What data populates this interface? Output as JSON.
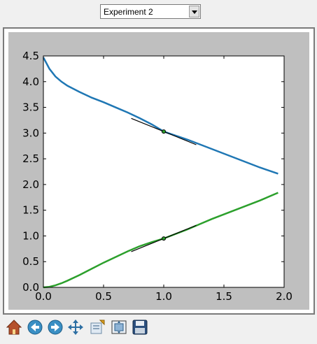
{
  "experiment_select": {
    "value": "Experiment 2"
  },
  "chart_data": {
    "type": "line",
    "xlim": [
      0.0,
      2.0
    ],
    "ylim": [
      0.0,
      4.5
    ],
    "x_ticks": [
      "0.0",
      "0.5",
      "1.0",
      "1.5",
      "2.0"
    ],
    "y_ticks": [
      "0.0",
      "0.5",
      "1.0",
      "1.5",
      "2.0",
      "2.5",
      "3.0",
      "3.5",
      "4.0",
      "4.5"
    ],
    "grid": false,
    "series": [
      {
        "color": "#1f77b4",
        "x": [
          0.0,
          0.05,
          0.1,
          0.15,
          0.2,
          0.3,
          0.4,
          0.5,
          0.6,
          0.7,
          0.8,
          0.9,
          1.0,
          1.1,
          1.2,
          1.3,
          1.4,
          1.5,
          1.6,
          1.7,
          1.8,
          1.95
        ],
        "y": [
          4.47,
          4.25,
          4.1,
          4.0,
          3.92,
          3.8,
          3.69,
          3.6,
          3.5,
          3.4,
          3.29,
          3.17,
          3.03,
          2.95,
          2.87,
          2.78,
          2.69,
          2.6,
          2.51,
          2.42,
          2.33,
          2.21
        ]
      },
      {
        "color": "#2ca02c",
        "x": [
          0.0,
          0.05,
          0.1,
          0.15,
          0.2,
          0.3,
          0.4,
          0.5,
          0.6,
          0.7,
          0.8,
          0.9,
          1.0,
          1.1,
          1.2,
          1.3,
          1.4,
          1.5,
          1.6,
          1.7,
          1.8,
          1.95
        ],
        "y": [
          0.0,
          0.01,
          0.04,
          0.08,
          0.13,
          0.24,
          0.36,
          0.48,
          0.59,
          0.7,
          0.8,
          0.88,
          0.95,
          1.04,
          1.13,
          1.23,
          1.33,
          1.42,
          1.51,
          1.6,
          1.69,
          1.84
        ]
      }
    ],
    "tangent_points": [
      {
        "x": 1.0,
        "y": 3.03,
        "slope": -0.95,
        "half_width": 0.27
      },
      {
        "x": 1.0,
        "y": 0.95,
        "slope": 0.95,
        "half_width": 0.27
      }
    ]
  },
  "toolbar": {
    "buttons": [
      {
        "icon": "home-icon"
      },
      {
        "icon": "back-arrow-icon"
      },
      {
        "icon": "forward-arrow-icon"
      },
      {
        "icon": "pan-icon"
      },
      {
        "icon": "zoom-icon"
      },
      {
        "icon": "configure-subplots-icon"
      },
      {
        "icon": "save-icon"
      }
    ]
  }
}
